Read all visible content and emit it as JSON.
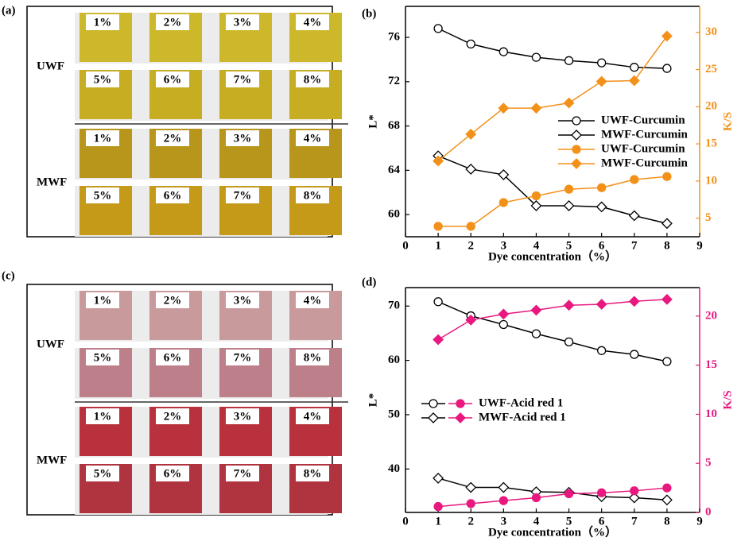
{
  "photo_panels": [
    {
      "label": "(a)",
      "groups": [
        {
          "name": "UWF",
          "colors": [
            "#cdb82c",
            "#c6ad22"
          ],
          "rows": [
            [
              "1%",
              "2%",
              "3%",
              "4%"
            ],
            [
              "5%",
              "6%",
              "7%",
              "8%"
            ]
          ]
        },
        {
          "name": "MWF",
          "colors": [
            "#b8961c",
            "#c49a18"
          ],
          "rows": [
            [
              "1%",
              "2%",
              "3%",
              "4%"
            ],
            [
              "5%",
              "6%",
              "7%",
              "8%"
            ]
          ]
        }
      ]
    },
    {
      "label": "(c)",
      "groups": [
        {
          "name": "UWF",
          "colors": [
            "#c99a9c",
            "#bd7f89"
          ],
          "rows": [
            [
              "1%",
              "2%",
              "3%",
              "4%"
            ],
            [
              "5%",
              "6%",
              "7%",
              "8%"
            ]
          ]
        },
        {
          "name": "MWF",
          "colors": [
            "#b8313d",
            "#b0343f"
          ],
          "rows": [
            [
              "1%",
              "2%",
              "3%",
              "4%"
            ],
            [
              "5%",
              "6%",
              "7%",
              "8%"
            ]
          ]
        }
      ]
    }
  ],
  "chart_data": [
    {
      "type": "line",
      "panel_label": "(b)",
      "x_label": "Dye concentration（%）",
      "y_label": "L*",
      "y2_label": "K/S",
      "x": [
        1,
        2,
        3,
        4,
        5,
        6,
        7,
        8
      ],
      "xlim": [
        0,
        9
      ],
      "xticks": [
        0,
        1,
        2,
        3,
        4,
        5,
        6,
        7,
        8,
        9
      ],
      "ylim": [
        58,
        78.8
      ],
      "yticks": [
        60,
        64,
        68,
        72,
        76
      ],
      "y2lim": [
        2.5,
        33.5
      ],
      "y2ticks": [
        5,
        10,
        15,
        20,
        25,
        30
      ],
      "y2color": "#f39019",
      "series": [
        {
          "name": "UWF-Curcumin",
          "color": "#000000",
          "marker": "circle",
          "filled": false,
          "values": [
            76.8,
            75.4,
            74.7,
            74.2,
            73.9,
            73.7,
            73.3,
            73.2
          ]
        },
        {
          "name": "MWF-Curcumin",
          "color": "#000000",
          "marker": "diamond",
          "filled": false,
          "values": [
            65.3,
            64.1,
            63.6,
            60.8,
            60.8,
            60.7,
            59.9,
            59.2
          ]
        },
        {
          "name": "UWF-Curcumin",
          "color": "#f39019",
          "marker": "circle",
          "filled": true,
          "axis": "y2",
          "values": [
            3.9,
            3.9,
            7.1,
            8.0,
            8.9,
            9.1,
            10.2,
            10.6
          ]
        },
        {
          "name": "MWF-Curcumin",
          "color": "#f39019",
          "marker": "diamond",
          "filled": true,
          "axis": "y2",
          "values": [
            12.7,
            16.3,
            19.8,
            19.8,
            20.5,
            23.4,
            23.5,
            29.5
          ]
        }
      ]
    },
    {
      "type": "line",
      "panel_label": "(d)",
      "x_label": "Dye concentration（%）",
      "y_label": "L*",
      "y2_label": "K/S",
      "x": [
        1,
        2,
        3,
        4,
        5,
        6,
        7,
        8
      ],
      "xlim": [
        0,
        9
      ],
      "xticks": [
        0,
        1,
        2,
        3,
        4,
        5,
        6,
        7,
        8,
        9
      ],
      "ylim": [
        32,
        73.4
      ],
      "yticks": [
        40,
        50,
        60,
        70
      ],
      "y2lim": [
        0,
        22.9
      ],
      "y2ticks": [
        0,
        5,
        10,
        15,
        20
      ],
      "y2color": "#e8187f",
      "series": [
        {
          "name": "UWF-Acid red 1",
          "color": "#000000",
          "marker": "circle",
          "filled": false,
          "values": [
            70.8,
            68.2,
            66.6,
            64.9,
            63.4,
            61.8,
            61.1,
            59.8
          ]
        },
        {
          "name": "MWF-Acid red 1",
          "color": "#000000",
          "marker": "diamond",
          "filled": false,
          "values": [
            38.3,
            36.6,
            36.6,
            35.8,
            35.7,
            34.9,
            34.7,
            34.3
          ]
        },
        {
          "color": "#e8187f",
          "marker": "circle",
          "filled": true,
          "axis": "y2",
          "values": [
            0.6,
            0.9,
            1.2,
            1.5,
            1.9,
            2.0,
            2.2,
            2.5
          ]
        },
        {
          "color": "#e8187f",
          "marker": "diamond",
          "filled": true,
          "axis": "y2",
          "values": [
            17.6,
            19.6,
            20.2,
            20.6,
            21.1,
            21.2,
            21.5,
            21.7
          ]
        }
      ]
    }
  ]
}
